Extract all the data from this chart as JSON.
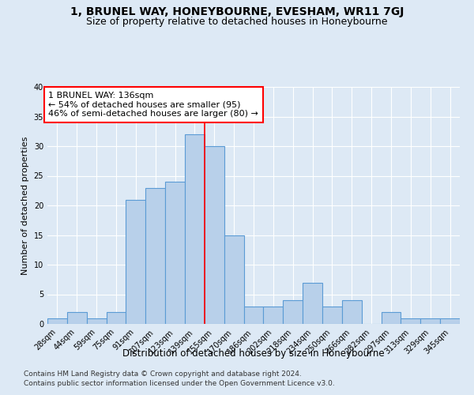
{
  "title": "1, BRUNEL WAY, HONEYBOURNE, EVESHAM, WR11 7GJ",
  "subtitle": "Size of property relative to detached houses in Honeybourne",
  "xlabel": "Distribution of detached houses by size in Honeybourne",
  "ylabel": "Number of detached properties",
  "bin_labels": [
    "28sqm",
    "44sqm",
    "59sqm",
    "75sqm",
    "91sqm",
    "107sqm",
    "123sqm",
    "139sqm",
    "155sqm",
    "170sqm",
    "186sqm",
    "202sqm",
    "218sqm",
    "234sqm",
    "250sqm",
    "266sqm",
    "282sqm",
    "297sqm",
    "313sqm",
    "329sqm",
    "345sqm"
  ],
  "bar_heights": [
    1,
    2,
    1,
    2,
    21,
    23,
    24,
    32,
    30,
    15,
    3,
    3,
    4,
    7,
    3,
    4,
    0,
    2,
    1,
    1,
    1
  ],
  "bar_color": "#b8d0ea",
  "bar_edge_color": "#5b9bd5",
  "background_color": "#dde9f5",
  "grid_color": "#ffffff",
  "red_line_x": 7.5,
  "annotation_text_line1": "1 BRUNEL WAY: 136sqm",
  "annotation_text_line2": "← 54% of detached houses are smaller (95)",
  "annotation_text_line3": "46% of semi-detached houses are larger (80) →",
  "footnote1": "Contains HM Land Registry data © Crown copyright and database right 2024.",
  "footnote2": "Contains public sector information licensed under the Open Government Licence v3.0.",
  "ylim": [
    0,
    40
  ],
  "yticks": [
    0,
    5,
    10,
    15,
    20,
    25,
    30,
    35,
    40
  ],
  "title_fontsize": 10,
  "subtitle_fontsize": 9,
  "xlabel_fontsize": 8.5,
  "ylabel_fontsize": 8,
  "tick_fontsize": 7,
  "annotation_fontsize": 8,
  "footnote_fontsize": 6.5
}
